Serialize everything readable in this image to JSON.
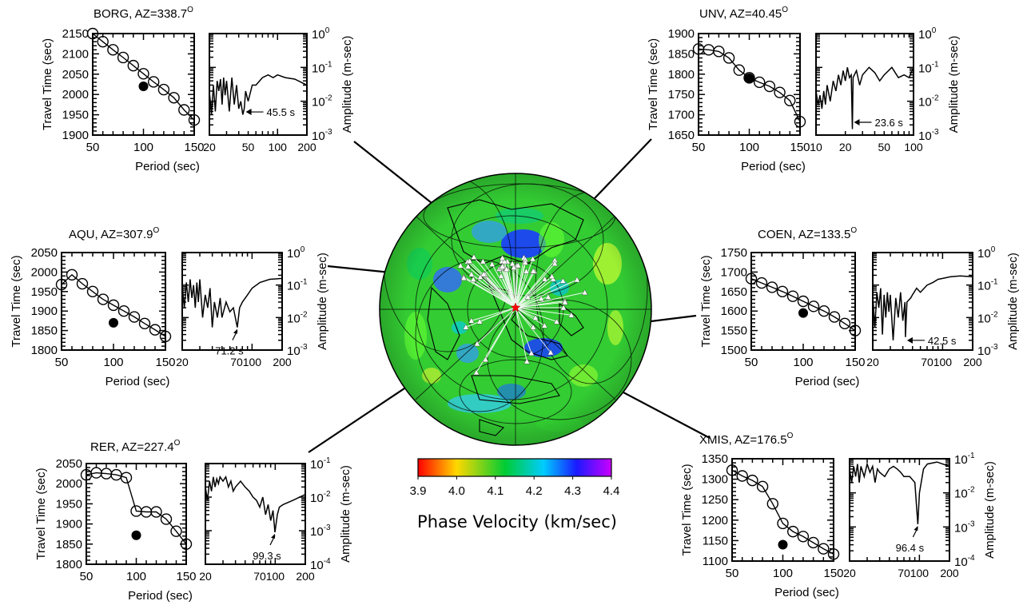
{
  "colorbar": {
    "title": "Phase Velocity (km/sec)",
    "ticks": [
      "3.9",
      "4.0",
      "4.1",
      "4.2",
      "4.3",
      "4.4"
    ],
    "colors": [
      "#ff0000",
      "#ffd800",
      "#00cc33",
      "#00ccff",
      "#1a1aff",
      "#cc00ff"
    ]
  },
  "map": {
    "background_color": "#33cc33",
    "station_marker": "white triangle",
    "event_marker": "red star"
  },
  "chart_data": [
    {
      "type": "scatter",
      "station": "BORG",
      "title": "BORG, AZ=338.7",
      "title_superscript": "O",
      "travel_time": {
        "xlabel": "Period (sec)",
        "ylabel": "Travel Time (sec)",
        "xlim": [
          50,
          150
        ],
        "ylim": [
          1900,
          2150
        ],
        "xticks": [
          "50",
          "100",
          "150"
        ],
        "yticks": [
          "1900",
          "1950",
          "2000",
          "2050",
          "2100",
          "2150"
        ],
        "x": [
          50,
          60,
          70,
          80,
          90,
          100,
          110,
          120,
          130,
          140,
          150
        ],
        "y": [
          2150,
          2130,
          2110,
          2091,
          2071,
          2051,
          2031,
          2012,
          1992,
          1962,
          1937
        ],
        "filled_point": [
          100,
          2020
        ]
      },
      "amplitude": {
        "ylabel": "Amplitude (m-sec)",
        "xscale": "log",
        "yscale": "log",
        "xlim": [
          20,
          200
        ],
        "ylim": [
          0.001,
          1
        ],
        "xticks": [
          "20",
          "50",
          "100",
          "200"
        ],
        "yticks": [
          "-3",
          "-2",
          "-1",
          "0"
        ],
        "x": [
          20,
          21,
          22,
          23,
          24,
          25,
          26,
          27,
          28,
          29,
          30,
          32,
          34,
          36,
          38,
          40,
          42,
          44,
          45.5,
          47,
          50,
          55,
          60,
          70,
          80,
          90,
          100,
          120,
          150,
          200
        ],
        "y": [
          0.02,
          0.004,
          0.03,
          0.005,
          0.04,
          0.02,
          0.045,
          0.008,
          0.05,
          0.015,
          0.04,
          0.005,
          0.05,
          0.008,
          0.03,
          0.006,
          0.01,
          0.004,
          0.006,
          0.02,
          0.01,
          0.03,
          0.03,
          0.05,
          0.06,
          0.05,
          0.06,
          0.05,
          0.045,
          0.03
        ],
        "annotation": "45.5 s",
        "annotation_x": 45.5
      }
    },
    {
      "type": "scatter",
      "station": "UNV",
      "title": "UNV, AZ=40.45",
      "title_superscript": "O",
      "travel_time": {
        "xlabel": "Period (sec)",
        "ylabel": "Travel Time (sec)",
        "xlim": [
          50,
          150
        ],
        "ylim": [
          1650,
          1900
        ],
        "xticks": [
          "50",
          "100",
          "150"
        ],
        "yticks": [
          "1650",
          "1700",
          "1750",
          "1800",
          "1850",
          "1900"
        ],
        "x": [
          50,
          60,
          70,
          80,
          90,
          100,
          110,
          120,
          130,
          140,
          150
        ],
        "y": [
          1862,
          1860,
          1856,
          1840,
          1810,
          1791,
          1780,
          1770,
          1755,
          1735,
          1683
        ],
        "filled_point": [
          100,
          1790
        ]
      },
      "amplitude": {
        "ylabel": "Amplitude (m-sec)",
        "xscale": "log",
        "yscale": "log",
        "xlim": [
          10,
          100
        ],
        "ylim": [
          0.001,
          1
        ],
        "xticks": [
          "10",
          "20",
          "50",
          "100"
        ],
        "yticks": [
          "-3",
          "-2",
          "-1",
          "0"
        ],
        "x": [
          10,
          10.5,
          11,
          11.5,
          12,
          12.5,
          13,
          14,
          15,
          16,
          17,
          18,
          19,
          20,
          21,
          22,
          23,
          23.6,
          24,
          26,
          28,
          30,
          35,
          40,
          45,
          50,
          60,
          70,
          80,
          90,
          100
        ],
        "y": [
          0.02,
          0.008,
          0.015,
          0.006,
          0.02,
          0.008,
          0.03,
          0.01,
          0.04,
          0.02,
          0.06,
          0.03,
          0.08,
          0.04,
          0.1,
          0.05,
          0.06,
          0.0015,
          0.05,
          0.08,
          0.03,
          0.06,
          0.1,
          0.07,
          0.04,
          0.06,
          0.1,
          0.05,
          0.06,
          0.05,
          0.1
        ],
        "annotation": "23.6 s",
        "annotation_x": 23.6
      }
    },
    {
      "type": "scatter",
      "station": "AQU",
      "title": "AQU, AZ=307.9",
      "title_superscript": "O",
      "travel_time": {
        "xlabel": "Period (sec)",
        "ylabel": "Travel Time (sec)",
        "xlim": [
          50,
          150
        ],
        "ylim": [
          1800,
          2050
        ],
        "xticks": [
          "50",
          "100",
          "150"
        ],
        "yticks": [
          "1800",
          "1850",
          "1900",
          "1950",
          "2000",
          "2050"
        ],
        "x": [
          50,
          60,
          70,
          80,
          90,
          100,
          110,
          120,
          130,
          140,
          150
        ],
        "y": [
          1968,
          1993,
          1970,
          1950,
          1930,
          1915,
          1900,
          1885,
          1868,
          1852,
          1835
        ],
        "filled_point": [
          100,
          1870
        ]
      },
      "amplitude": {
        "ylabel": "Amplitude (m-sec)",
        "xscale": "log",
        "yscale": "log",
        "xlim": [
          20,
          200
        ],
        "ylim": [
          0.001,
          1
        ],
        "xticks": [
          "20",
          "70",
          "100",
          "200"
        ],
        "yticks": [
          "-3",
          "-2",
          "-1",
          "0"
        ],
        "x": [
          20,
          21,
          22,
          23,
          24,
          25,
          26,
          27,
          28,
          29,
          30,
          32,
          34,
          36,
          38,
          40,
          42,
          45,
          48,
          50,
          55,
          60,
          65,
          71.2,
          75,
          80,
          90,
          100,
          120,
          150,
          200
        ],
        "y": [
          0.1,
          0.02,
          0.12,
          0.03,
          0.15,
          0.04,
          0.1,
          0.02,
          0.12,
          0.03,
          0.15,
          0.01,
          0.05,
          0.02,
          0.08,
          0.005,
          0.03,
          0.01,
          0.04,
          0.01,
          0.03,
          0.015,
          0.02,
          0.005,
          0.02,
          0.03,
          0.05,
          0.08,
          0.12,
          0.15,
          0.16
        ],
        "annotation": "71.2 s",
        "annotation_x": 71.2
      }
    },
    {
      "type": "scatter",
      "station": "COEN",
      "title": "COEN, AZ=133.5",
      "title_superscript": "O",
      "travel_time": {
        "xlabel": "Period (sec)",
        "ylabel": "Travel Time (sec)",
        "xlim": [
          50,
          150
        ],
        "ylim": [
          1500,
          1750
        ],
        "xticks": [
          "50",
          "100",
          "150"
        ],
        "yticks": [
          "1500",
          "1550",
          "1600",
          "1650",
          "1700",
          "1750"
        ],
        "x": [
          50,
          60,
          70,
          80,
          90,
          100,
          110,
          120,
          130,
          140,
          150
        ],
        "y": [
          1683,
          1672,
          1661,
          1650,
          1638,
          1625,
          1612,
          1600,
          1585,
          1568,
          1550
        ],
        "filled_point": [
          100,
          1595
        ]
      },
      "amplitude": {
        "ylabel": "Amplitude (m-sec)",
        "xscale": "log",
        "yscale": "log",
        "xlim": [
          20,
          200
        ],
        "ylim": [
          0.001,
          1
        ],
        "xticks": [
          "20",
          "70",
          "100",
          "200"
        ],
        "yticks": [
          "-3",
          "-2",
          "-1",
          "0"
        ],
        "x": [
          20,
          21,
          22,
          23,
          24,
          25,
          26,
          27,
          28,
          29,
          30,
          32,
          34,
          36,
          38,
          40,
          42,
          42.5,
          44,
          48,
          50,
          55,
          60,
          70,
          80,
          90,
          100,
          120,
          150,
          200
        ],
        "y": [
          0.05,
          0.005,
          0.06,
          0.02,
          0.08,
          0.003,
          0.05,
          0.01,
          0.06,
          0.015,
          0.05,
          0.002,
          0.04,
          0.01,
          0.06,
          0.008,
          0.03,
          0.0025,
          0.03,
          0.04,
          0.05,
          0.08,
          0.06,
          0.1,
          0.12,
          0.15,
          0.16,
          0.18,
          0.19,
          0.18
        ],
        "annotation": "42.5 s",
        "annotation_x": 42.5
      }
    },
    {
      "type": "scatter",
      "station": "RER",
      "title": "RER, AZ=227.4",
      "title_superscript": "O",
      "travel_time": {
        "xlabel": "Period (sec)",
        "ylabel": "Travel Time (sec)",
        "xlim": [
          50,
          150
        ],
        "ylim": [
          1800,
          2050
        ],
        "xticks": [
          "50",
          "100",
          "150"
        ],
        "yticks": [
          "1800",
          "1850",
          "1900",
          "1950",
          "2000",
          "2050"
        ],
        "x": [
          50,
          60,
          70,
          80,
          90,
          100,
          110,
          120,
          130,
          140,
          150
        ],
        "y": [
          2022,
          2027,
          2025,
          2022,
          2015,
          1932,
          1930,
          1930,
          1912,
          1882,
          1850
        ],
        "filled_point": [
          100,
          1872
        ]
      },
      "amplitude": {
        "ylabel": "Amplitude (m-sec)",
        "xscale": "log",
        "yscale": "log",
        "xlim": [
          20,
          200
        ],
        "ylim": [
          0.0001,
          0.1
        ],
        "xticks": [
          "20",
          "70",
          "100",
          "200"
        ],
        "yticks": [
          "-4",
          "-3",
          "-2",
          "-1"
        ],
        "x": [
          20,
          21,
          22,
          23,
          24,
          25,
          26,
          27,
          28,
          30,
          32,
          34,
          36,
          38,
          40,
          45,
          50,
          55,
          60,
          65,
          70,
          75,
          80,
          85,
          90,
          95,
          99.3,
          105,
          110,
          120,
          150,
          200
        ],
        "y": [
          0.02,
          0.008,
          0.03,
          0.015,
          0.04,
          0.02,
          0.035,
          0.025,
          0.04,
          0.03,
          0.04,
          0.02,
          0.03,
          0.015,
          0.02,
          0.03,
          0.02,
          0.015,
          0.01,
          0.008,
          0.005,
          0.01,
          0.003,
          0.006,
          0.002,
          0.004,
          0.0009,
          0.003,
          0.005,
          0.006,
          0.008,
          0.012
        ],
        "annotation": "99.3 s",
        "annotation_x": 99.3
      }
    },
    {
      "type": "scatter",
      "station": "XMIS",
      "title": "XMIS, AZ=176.5",
      "title_superscript": "O",
      "travel_time": {
        "xlabel": "Period (sec)",
        "ylabel": "Travel Time (sec)",
        "xlim": [
          50,
          150
        ],
        "ylim": [
          1100,
          1350
        ],
        "xticks": [
          "50",
          "100",
          "150"
        ],
        "yticks": [
          "1100",
          "1150",
          "1200",
          "1250",
          "1300",
          "1350"
        ],
        "x": [
          50,
          60,
          70,
          80,
          90,
          100,
          110,
          120,
          130,
          140,
          150
        ],
        "y": [
          1322,
          1308,
          1297,
          1282,
          1240,
          1192,
          1172,
          1160,
          1145,
          1130,
          1117
        ],
        "filled_point": [
          100,
          1140
        ]
      },
      "amplitude": {
        "ylabel": "Amplitude (m-sec)",
        "xscale": "log",
        "yscale": "log",
        "xlim": [
          20,
          200
        ],
        "ylim": [
          0.0001,
          0.1
        ],
        "xticks": [
          "20",
          "70",
          "100",
          "200"
        ],
        "yticks": [
          "-4",
          "-3",
          "-2",
          "-1"
        ],
        "x": [
          20,
          21,
          22,
          23,
          24,
          25,
          26,
          28,
          30,
          32,
          34,
          36,
          38,
          40,
          45,
          50,
          55,
          60,
          65,
          70,
          80,
          90,
          96.4,
          100,
          110,
          120,
          150,
          200
        ],
        "y": [
          0.05,
          0.02,
          0.06,
          0.03,
          0.07,
          0.02,
          0.06,
          0.03,
          0.07,
          0.04,
          0.06,
          0.02,
          0.05,
          0.04,
          0.03,
          0.05,
          0.06,
          0.05,
          0.04,
          0.03,
          0.03,
          0.02,
          0.0012,
          0.01,
          0.05,
          0.07,
          0.08,
          0.06
        ],
        "annotation": "96.4 s",
        "annotation_x": 96.4
      }
    }
  ]
}
